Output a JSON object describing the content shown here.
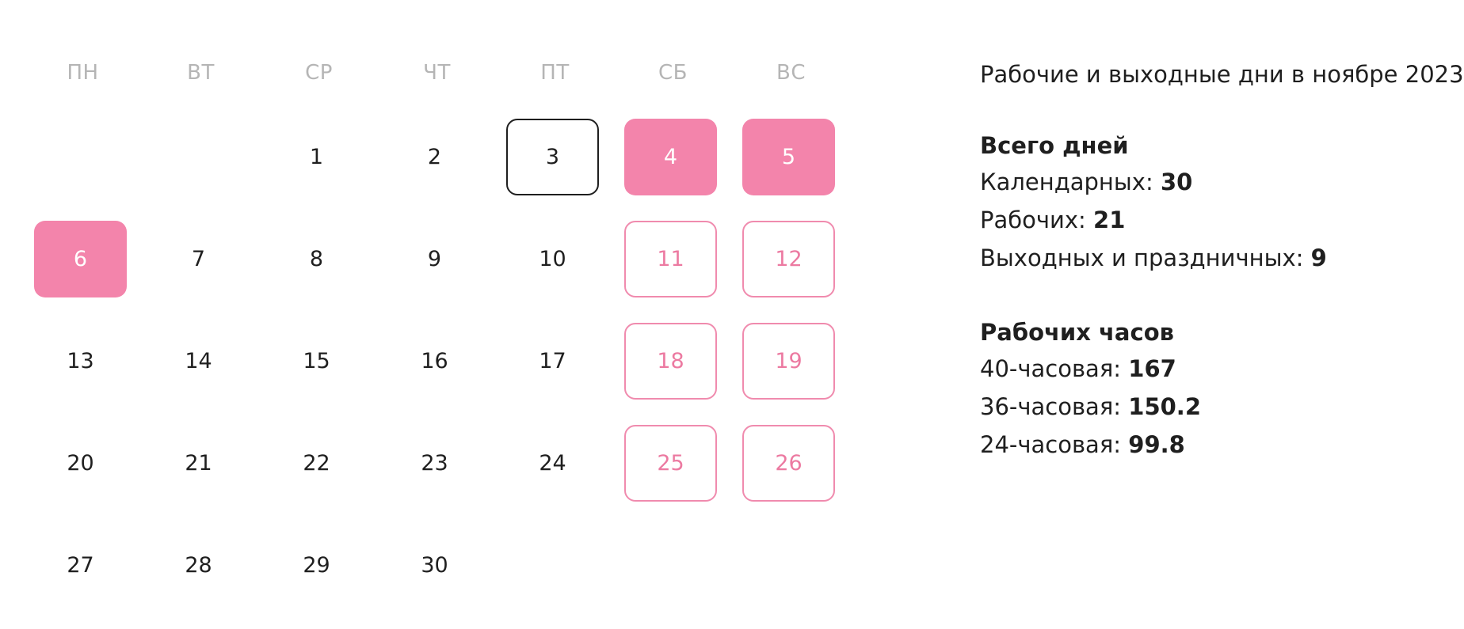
{
  "calendar": {
    "weekdays": [
      "ПН",
      "ВТ",
      "СР",
      "ЧТ",
      "ПТ",
      "СБ",
      "ВС"
    ],
    "weeks": [
      [
        {
          "label": "",
          "type": "empty"
        },
        {
          "label": "",
          "type": "empty"
        },
        {
          "label": "1",
          "type": "work"
        },
        {
          "label": "2",
          "type": "work"
        },
        {
          "label": "3",
          "type": "today"
        },
        {
          "label": "4",
          "type": "holiday"
        },
        {
          "label": "5",
          "type": "holiday"
        }
      ],
      [
        {
          "label": "6",
          "type": "holiday"
        },
        {
          "label": "7",
          "type": "work"
        },
        {
          "label": "8",
          "type": "work"
        },
        {
          "label": "9",
          "type": "work"
        },
        {
          "label": "10",
          "type": "work"
        },
        {
          "label": "11",
          "type": "weekend"
        },
        {
          "label": "12",
          "type": "weekend"
        }
      ],
      [
        {
          "label": "13",
          "type": "work"
        },
        {
          "label": "14",
          "type": "work"
        },
        {
          "label": "15",
          "type": "work"
        },
        {
          "label": "16",
          "type": "work"
        },
        {
          "label": "17",
          "type": "work"
        },
        {
          "label": "18",
          "type": "weekend"
        },
        {
          "label": "19",
          "type": "weekend"
        }
      ],
      [
        {
          "label": "20",
          "type": "work"
        },
        {
          "label": "21",
          "type": "work"
        },
        {
          "label": "22",
          "type": "work"
        },
        {
          "label": "23",
          "type": "work"
        },
        {
          "label": "24",
          "type": "work"
        },
        {
          "label": "25",
          "type": "weekend"
        },
        {
          "label": "26",
          "type": "weekend"
        }
      ],
      [
        {
          "label": "27",
          "type": "work"
        },
        {
          "label": "28",
          "type": "work"
        },
        {
          "label": "29",
          "type": "work"
        },
        {
          "label": "30",
          "type": "work"
        },
        {
          "label": "",
          "type": "empty"
        },
        {
          "label": "",
          "type": "empty"
        },
        {
          "label": "",
          "type": "empty"
        }
      ]
    ]
  },
  "info": {
    "title": "Рабочие и выходные дни в ноябре 2023",
    "total_days": {
      "heading": "Всего дней",
      "items": [
        {
          "label": "Календарных: ",
          "value": "30"
        },
        {
          "label": "Рабочих: ",
          "value": "21"
        },
        {
          "label": "Выходных и праздничных: ",
          "value": "9"
        }
      ]
    },
    "work_hours": {
      "heading": "Рабочих часов",
      "items": [
        {
          "label": "40-часовая: ",
          "value": "167"
        },
        {
          "label": "36-часовая: ",
          "value": "150.2"
        },
        {
          "label": "24-часовая: ",
          "value": "99.8"
        }
      ]
    }
  },
  "colors": {
    "holiday_fill": "#f384ab",
    "weekend_border": "#f08bae",
    "weekend_text": "#ec7aa1",
    "today_border": "#1f1f1f",
    "weekday_header": "#b5b5b5"
  }
}
